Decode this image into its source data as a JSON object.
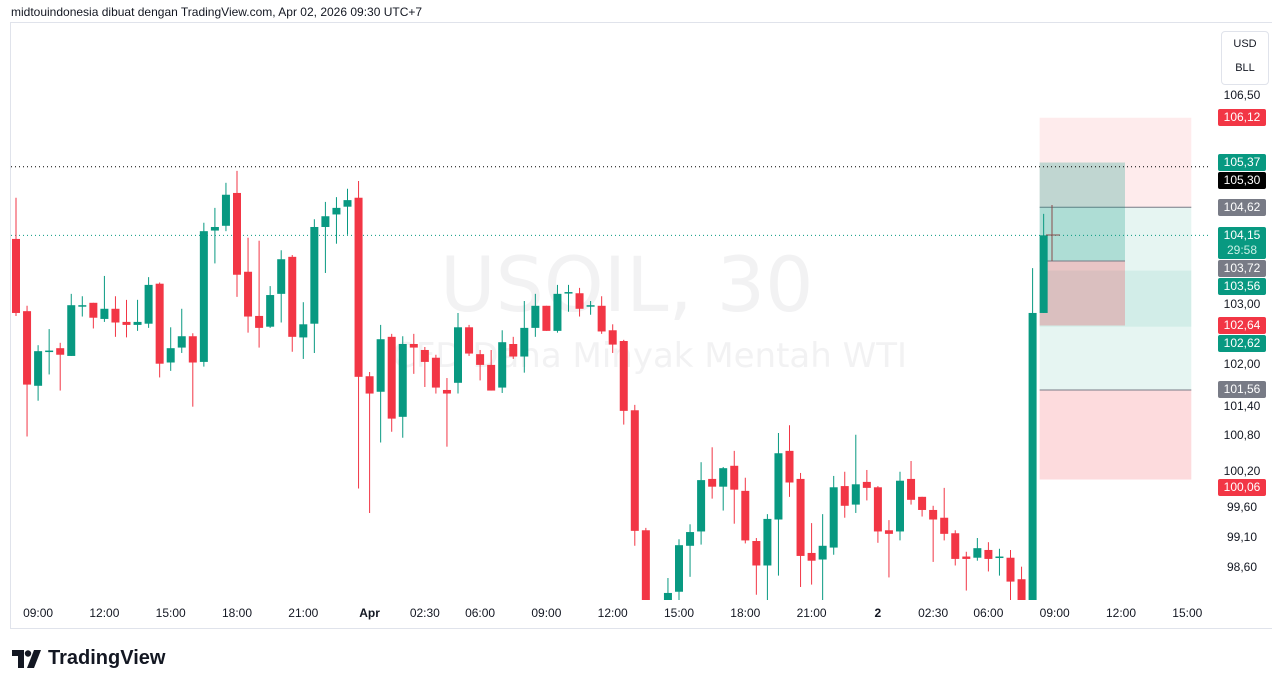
{
  "header": {
    "text": "midtouindonesia dibuat dengan TradingView.com, Apr 02, 2026 09:30 UTC+7"
  },
  "watermark": {
    "symbol": "USOIL, 30",
    "description": "CFD Dana Minyak Mentah WTI"
  },
  "unit_box": {
    "currency": "USD",
    "unit": "BLL"
  },
  "logo": {
    "text": "TradingView"
  },
  "colors": {
    "up": "#089981",
    "down": "#f23645",
    "gray": "#787b86",
    "black": "#000000"
  },
  "chart_data": {
    "type": "candlestick",
    "symbol": "USOIL",
    "interval": "30",
    "ylim": [
      97.95,
      106.85
    ],
    "grid": false,
    "y_ticks": [
      "106,50",
      "103,00",
      "102,00",
      "101,40",
      "100,80",
      "100,20",
      "99,60",
      "99,10",
      "98,60"
    ],
    "y_tick_values": [
      106.5,
      103.0,
      102.0,
      101.4,
      100.8,
      100.2,
      99.6,
      99.1,
      98.6
    ],
    "x_ticks": [
      {
        "label": "09:00",
        "bar": 3
      },
      {
        "label": "12:00",
        "bar": 9
      },
      {
        "label": "15:00",
        "bar": 15
      },
      {
        "label": "18:00",
        "bar": 21
      },
      {
        "label": "21:00",
        "bar": 27
      },
      {
        "label": "Apr",
        "bar": 33,
        "bold": true
      },
      {
        "label": "02:30",
        "bar": 38
      },
      {
        "label": "06:00",
        "bar": 43
      },
      {
        "label": "09:00",
        "bar": 49
      },
      {
        "label": "12:00",
        "bar": 55
      },
      {
        "label": "15:00",
        "bar": 61
      },
      {
        "label": "18:00",
        "bar": 67
      },
      {
        "label": "21:00",
        "bar": 73
      },
      {
        "label": "2",
        "bar": 79,
        "bold": true
      },
      {
        "label": "02:30",
        "bar": 84
      },
      {
        "label": "06:00",
        "bar": 89
      },
      {
        "label": "09:00",
        "bar": 95
      },
      {
        "label": "12:00",
        "bar": 101
      },
      {
        "label": "15:00",
        "bar": 107
      }
    ],
    "ohlc": [
      [
        104.09,
        104.78,
        102.8,
        102.85
      ],
      [
        102.88,
        102.97,
        100.78,
        101.65
      ],
      [
        101.63,
        102.31,
        101.38,
        102.21
      ],
      [
        102.21,
        102.58,
        101.82,
        102.22
      ],
      [
        102.26,
        102.35,
        101.55,
        102.15
      ],
      [
        102.13,
        103.17,
        102.13,
        102.98
      ],
      [
        102.97,
        103.13,
        102.79,
        102.98
      ],
      [
        103.02,
        103.02,
        102.59,
        102.77
      ],
      [
        102.75,
        103.47,
        102.7,
        102.92
      ],
      [
        102.92,
        103.13,
        102.45,
        102.69
      ],
      [
        102.7,
        103.07,
        102.44,
        102.65
      ],
      [
        102.65,
        103.07,
        102.55,
        102.7
      ],
      [
        102.67,
        103.45,
        102.6,
        103.32
      ],
      [
        103.34,
        103.36,
        101.77,
        102.0
      ],
      [
        102.02,
        102.61,
        101.88,
        102.26
      ],
      [
        102.27,
        102.92,
        102.18,
        102.46
      ],
      [
        102.46,
        102.51,
        101.28,
        102.02
      ],
      [
        102.03,
        104.36,
        101.95,
        104.22
      ],
      [
        104.23,
        104.61,
        103.68,
        104.29
      ],
      [
        104.31,
        105.03,
        104.22,
        104.83
      ],
      [
        104.86,
        105.23,
        103.12,
        103.49
      ],
      [
        103.54,
        104.11,
        102.52,
        102.79
      ],
      [
        102.8,
        104.06,
        102.27,
        102.6
      ],
      [
        102.62,
        103.3,
        102.6,
        103.15
      ],
      [
        103.17,
        103.9,
        102.69,
        103.75
      ],
      [
        103.79,
        103.82,
        102.2,
        102.45
      ],
      [
        102.44,
        103.03,
        102.08,
        102.66
      ],
      [
        102.67,
        104.42,
        102.18,
        104.29
      ],
      [
        104.29,
        104.71,
        103.52,
        104.47
      ],
      [
        104.5,
        104.79,
        104.01,
        104.61
      ],
      [
        104.63,
        104.93,
        104.16,
        104.74
      ],
      [
        104.78,
        105.06,
        99.91,
        101.78
      ],
      [
        101.79,
        101.86,
        99.5,
        101.5
      ],
      [
        101.53,
        102.65,
        100.68,
        102.41
      ],
      [
        102.45,
        102.5,
        100.86,
        101.08
      ],
      [
        101.11,
        102.46,
        100.76,
        102.33
      ],
      [
        102.33,
        102.5,
        101.83,
        102.27
      ],
      [
        102.23,
        102.28,
        101.61,
        102.03
      ],
      [
        102.1,
        102.15,
        101.5,
        101.6
      ],
      [
        101.56,
        101.76,
        100.61,
        101.5
      ],
      [
        101.68,
        102.85,
        101.5,
        102.61
      ],
      [
        102.61,
        102.65,
        102.13,
        102.17
      ],
      [
        102.16,
        102.23,
        101.72,
        101.98
      ],
      [
        101.98,
        102.23,
        101.55,
        101.55
      ],
      [
        101.6,
        102.56,
        101.51,
        102.36
      ],
      [
        102.33,
        102.45,
        102.08,
        102.12
      ],
      [
        102.12,
        103.05,
        101.85,
        102.6
      ],
      [
        102.6,
        103.17,
        102.45,
        102.97
      ],
      [
        102.97,
        102.97,
        102.55,
        102.55
      ],
      [
        102.55,
        103.32,
        102.52,
        103.17
      ],
      [
        103.19,
        103.32,
        102.87,
        103.2
      ],
      [
        103.18,
        103.27,
        102.79,
        102.92
      ],
      [
        102.98,
        103.05,
        102.82,
        102.98
      ],
      [
        102.97,
        103.13,
        102.5,
        102.54
      ],
      [
        102.56,
        102.66,
        102.18,
        102.32
      ],
      [
        102.38,
        102.4,
        100.98,
        101.21
      ],
      [
        101.22,
        101.31,
        98.95,
        99.2
      ],
      [
        99.21,
        99.25,
        97.8,
        97.95
      ],
      [
        97.95,
        98.0,
        97.6,
        97.75
      ],
      [
        97.8,
        98.41,
        97.7,
        98.16
      ],
      [
        98.18,
        99.06,
        98.0,
        98.96
      ],
      [
        98.95,
        99.31,
        98.43,
        99.18
      ],
      [
        99.19,
        100.35,
        98.97,
        100.05
      ],
      [
        100.07,
        100.6,
        99.74,
        99.94
      ],
      [
        99.94,
        100.27,
        99.54,
        100.25
      ],
      [
        100.29,
        100.54,
        99.32,
        99.89
      ],
      [
        99.87,
        100.09,
        98.99,
        99.04
      ],
      [
        99.03,
        99.08,
        98.13,
        98.62
      ],
      [
        98.62,
        99.48,
        98.0,
        99.4
      ],
      [
        99.39,
        100.84,
        98.45,
        100.5
      ],
      [
        100.54,
        100.97,
        99.77,
        100.01
      ],
      [
        100.07,
        100.17,
        98.26,
        98.78
      ],
      [
        98.83,
        99.33,
        98.3,
        98.7
      ],
      [
        98.72,
        99.48,
        98.0,
        98.95
      ],
      [
        98.92,
        100.12,
        98.8,
        99.93
      ],
      [
        99.95,
        100.19,
        99.42,
        99.62
      ],
      [
        99.64,
        100.81,
        99.5,
        99.98
      ],
      [
        100.02,
        100.22,
        99.71,
        99.92
      ],
      [
        99.93,
        99.95,
        99.0,
        99.19
      ],
      [
        99.21,
        99.38,
        98.42,
        99.15
      ],
      [
        99.19,
        100.19,
        99.04,
        100.04
      ],
      [
        100.07,
        100.37,
        99.64,
        99.72
      ],
      [
        99.77,
        99.77,
        99.44,
        99.55
      ],
      [
        99.55,
        99.62,
        98.68,
        99.39
      ],
      [
        99.42,
        99.92,
        99.04,
        99.15
      ],
      [
        99.16,
        99.21,
        98.62,
        98.73
      ],
      [
        98.77,
        98.85,
        98.2,
        98.73
      ],
      [
        98.75,
        99.08,
        98.7,
        98.91
      ],
      [
        98.88,
        99.01,
        98.52,
        98.73
      ],
      [
        98.76,
        98.9,
        98.45,
        98.77
      ],
      [
        98.75,
        98.88,
        98.0,
        98.35
      ],
      [
        98.39,
        98.6,
        97.85,
        97.95
      ],
      [
        97.95,
        103.6,
        97.9,
        102.85
      ],
      [
        102.85,
        104.51,
        102.85,
        104.15
      ]
    ],
    "horizontal_lines": [
      {
        "price": 105.3,
        "style": "dotted",
        "color": "#000000"
      },
      {
        "price": 104.15,
        "style": "dotted",
        "color": "#089981"
      }
    ],
    "position_tools": [
      {
        "type": "long",
        "entry": 103.72,
        "target": 105.37,
        "stop": 102.64,
        "from_bar": 94,
        "to_bar": 101
      },
      {
        "type": "range",
        "levels": [
          106.12,
          104.62,
          103.56,
          102.62,
          101.56,
          100.06
        ],
        "from_bar": 94,
        "to_bar": 107
      }
    ],
    "price_labels": [
      {
        "text": "106,12",
        "price": 106.12,
        "color": "#f23645"
      },
      {
        "text": "105,37",
        "price": 105.37,
        "color": "#089981"
      },
      {
        "text": "105,30",
        "price": 105.3,
        "color": "#000000"
      },
      {
        "text": "104,62",
        "price": 104.62,
        "color": "#787b86"
      },
      {
        "text": "104,15",
        "price": 104.15,
        "color": "#089981",
        "countdown": "29:58"
      },
      {
        "text": "103,72",
        "price": 103.72,
        "color": "#787b86"
      },
      {
        "text": "103,56",
        "price": 103.56,
        "color": "#089981"
      },
      {
        "text": "102,64",
        "price": 102.64,
        "color": "#f23645"
      },
      {
        "text": "102,62",
        "price": 102.62,
        "color": "#089981"
      },
      {
        "text": "101,56",
        "price": 101.56,
        "color": "#787b86"
      },
      {
        "text": "100,06",
        "price": 100.06,
        "color": "#f23645"
      }
    ]
  }
}
